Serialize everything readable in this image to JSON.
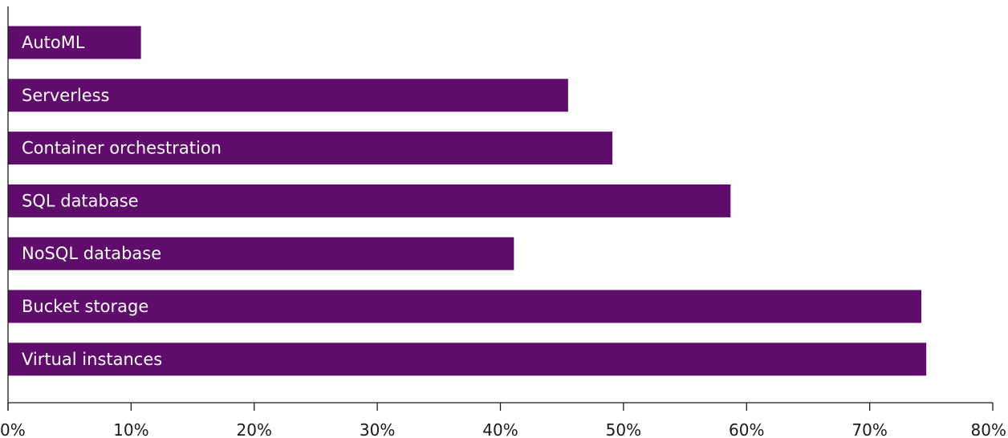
{
  "chart_data": {
    "type": "bar",
    "orientation": "horizontal",
    "categories": [
      "AutoML",
      "Serverless",
      "Container orchestration",
      "SQL database",
      "NoSQL database",
      "Bucket storage",
      "Virtual instances"
    ],
    "values": [
      10.8,
      45.5,
      49.1,
      58.7,
      41.1,
      74.2,
      74.6
    ],
    "value_unit": "%",
    "xlim": [
      0,
      80
    ],
    "x_ticks": [
      "0%",
      "10%",
      "20%",
      "30%",
      "40%",
      "50%",
      "60%",
      "70%",
      "80%"
    ],
    "bar_color": "#600c6d",
    "label_color": "#ffffff",
    "labels_inside_bars": true,
    "grid": false,
    "legend": "none",
    "title": "",
    "xlabel": "",
    "ylabel": ""
  }
}
